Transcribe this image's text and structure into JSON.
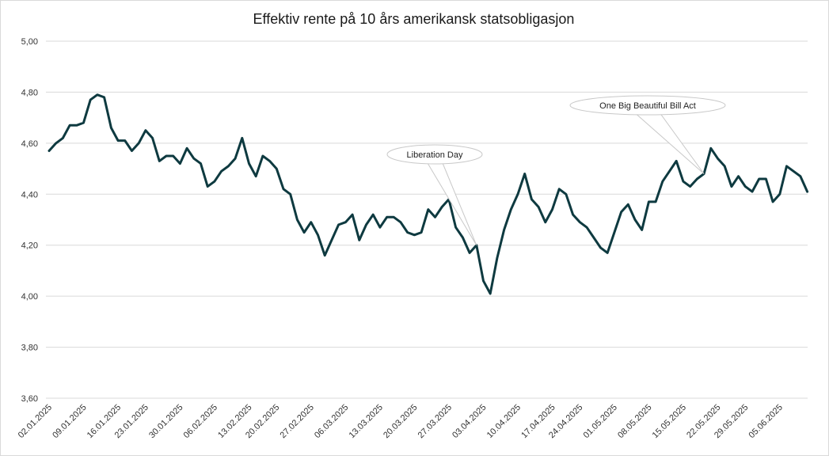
{
  "chart_data": {
    "type": "line",
    "title": "Effektiv rente på 10 års amerikansk statsobligasjon",
    "xlabel": "",
    "ylabel": "",
    "ylim": [
      3.6,
      5.0
    ],
    "y_ticks": [
      "3,60",
      "3,80",
      "4,00",
      "4,20",
      "4,40",
      "4,60",
      "4,80",
      "5,00"
    ],
    "grid": "horizontal",
    "line_color": "#0e3a40",
    "x_tick_labels": [
      "02.01.2025",
      "09.01.2025",
      "16.01.2025",
      "23.01.2025",
      "30.01.2025",
      "06.02.2025",
      "13.02.2025",
      "20.02.2025",
      "27.02.2025",
      "06.03.2025",
      "13.03.2025",
      "20.03.2025",
      "27.03.2025",
      "03.04.2025",
      "10.04.2025",
      "17.04.2025",
      "24.04.2025",
      "01.05.2025",
      "08.05.2025",
      "15.05.2025",
      "22.05.2025",
      "29.05.2025",
      "05.06.2025"
    ],
    "series": [
      {
        "values": [
          [
            "2025-01-02",
            4.57
          ],
          [
            "2025-01-03",
            4.6
          ],
          [
            "2025-01-06",
            4.62
          ],
          [
            "2025-01-07",
            4.67
          ],
          [
            "2025-01-08",
            4.67
          ],
          [
            "2025-01-09",
            4.68
          ],
          [
            "2025-01-10",
            4.77
          ],
          [
            "2025-01-13",
            4.79
          ],
          [
            "2025-01-14",
            4.78
          ],
          [
            "2025-01-15",
            4.66
          ],
          [
            "2025-01-16",
            4.61
          ],
          [
            "2025-01-17",
            4.61
          ],
          [
            "2025-01-21",
            4.57
          ],
          [
            "2025-01-22",
            4.6
          ],
          [
            "2025-01-23",
            4.65
          ],
          [
            "2025-01-24",
            4.62
          ],
          [
            "2025-01-27",
            4.53
          ],
          [
            "2025-01-28",
            4.55
          ],
          [
            "2025-01-29",
            4.55
          ],
          [
            "2025-01-30",
            4.52
          ],
          [
            "2025-01-31",
            4.58
          ],
          [
            "2025-02-03",
            4.54
          ],
          [
            "2025-02-04",
            4.52
          ],
          [
            "2025-02-05",
            4.43
          ],
          [
            "2025-02-06",
            4.45
          ],
          [
            "2025-02-07",
            4.49
          ],
          [
            "2025-02-10",
            4.51
          ],
          [
            "2025-02-11",
            4.54
          ],
          [
            "2025-02-12",
            4.62
          ],
          [
            "2025-02-13",
            4.52
          ],
          [
            "2025-02-14",
            4.47
          ],
          [
            "2025-02-18",
            4.55
          ],
          [
            "2025-02-19",
            4.53
          ],
          [
            "2025-02-20",
            4.5
          ],
          [
            "2025-02-21",
            4.42
          ],
          [
            "2025-02-24",
            4.4
          ],
          [
            "2025-02-25",
            4.3
          ],
          [
            "2025-02-26",
            4.25
          ],
          [
            "2025-02-27",
            4.29
          ],
          [
            "2025-02-28",
            4.24
          ],
          [
            "2025-03-03",
            4.16
          ],
          [
            "2025-03-04",
            4.22
          ],
          [
            "2025-03-05",
            4.28
          ],
          [
            "2025-03-06",
            4.29
          ],
          [
            "2025-03-07",
            4.32
          ],
          [
            "2025-03-10",
            4.22
          ],
          [
            "2025-03-11",
            4.28
          ],
          [
            "2025-03-12",
            4.32
          ],
          [
            "2025-03-13",
            4.27
          ],
          [
            "2025-03-14",
            4.31
          ],
          [
            "2025-03-17",
            4.31
          ],
          [
            "2025-03-18",
            4.29
          ],
          [
            "2025-03-19",
            4.25
          ],
          [
            "2025-03-20",
            4.24
          ],
          [
            "2025-03-21",
            4.25
          ],
          [
            "2025-03-24",
            4.34
          ],
          [
            "2025-03-25",
            4.31
          ],
          [
            "2025-03-26",
            4.35
          ],
          [
            "2025-03-27",
            4.38
          ],
          [
            "2025-03-28",
            4.27
          ],
          [
            "2025-03-31",
            4.23
          ],
          [
            "2025-04-01",
            4.17
          ],
          [
            "2025-04-02",
            4.2
          ],
          [
            "2025-04-03",
            4.06
          ],
          [
            "2025-04-04",
            4.01
          ],
          [
            "2025-04-07",
            4.15
          ],
          [
            "2025-04-08",
            4.26
          ],
          [
            "2025-04-09",
            4.34
          ],
          [
            "2025-04-10",
            4.4
          ],
          [
            "2025-04-11",
            4.48
          ],
          [
            "2025-04-14",
            4.38
          ],
          [
            "2025-04-15",
            4.35
          ],
          [
            "2025-04-16",
            4.29
          ],
          [
            "2025-04-17",
            4.34
          ],
          [
            "2025-04-21",
            4.42
          ],
          [
            "2025-04-22",
            4.4
          ],
          [
            "2025-04-23",
            4.32
          ],
          [
            "2025-04-24",
            4.29
          ],
          [
            "2025-04-25",
            4.27
          ],
          [
            "2025-04-28",
            4.23
          ],
          [
            "2025-04-29",
            4.19
          ],
          [
            "2025-04-30",
            4.17
          ],
          [
            "2025-05-01",
            4.25
          ],
          [
            "2025-05-02",
            4.33
          ],
          [
            "2025-05-05",
            4.36
          ],
          [
            "2025-05-06",
            4.3
          ],
          [
            "2025-05-07",
            4.26
          ],
          [
            "2025-05-08",
            4.37
          ],
          [
            "2025-05-09",
            4.37
          ],
          [
            "2025-05-12",
            4.45
          ],
          [
            "2025-05-13",
            4.49
          ],
          [
            "2025-05-14",
            4.53
          ],
          [
            "2025-05-15",
            4.45
          ],
          [
            "2025-05-16",
            4.43
          ],
          [
            "2025-05-19",
            4.46
          ],
          [
            "2025-05-20",
            4.48
          ],
          [
            "2025-05-21",
            4.58
          ],
          [
            "2025-05-22",
            4.54
          ],
          [
            "2025-05-23",
            4.51
          ],
          [
            "2025-05-27",
            4.43
          ],
          [
            "2025-05-28",
            4.47
          ],
          [
            "2025-05-29",
            4.43
          ],
          [
            "2025-05-30",
            4.41
          ],
          [
            "2025-06-02",
            4.46
          ],
          [
            "2025-06-03",
            4.46
          ],
          [
            "2025-06-04",
            4.37
          ],
          [
            "2025-06-05",
            4.4
          ],
          [
            "2025-06-06",
            4.51
          ],
          [
            "2025-06-09",
            4.49
          ],
          [
            "2025-06-10",
            4.47
          ],
          [
            "2025-06-11",
            4.41
          ]
        ]
      }
    ],
    "annotations": [
      {
        "text": "Liberation Day",
        "date": "2025-04-02",
        "value": 4.2
      },
      {
        "text": "One Big Beautiful Bill Act",
        "date": "2025-05-20",
        "value": 4.48
      }
    ]
  }
}
